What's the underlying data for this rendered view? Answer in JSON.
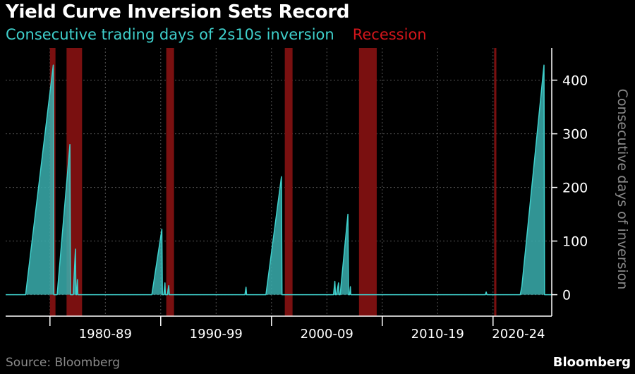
{
  "title": "Yield Curve Inversion Sets Record",
  "legend": {
    "series_label": "Consecutive trading days of 2s10s inversion",
    "recession_label": "Recession"
  },
  "source": "Source: Bloomberg",
  "brand": "Bloomberg",
  "colors": {
    "series": "#3fd0cc",
    "series_fill": "#3aaeae",
    "recession": "#7a1010",
    "grid": "#555555",
    "text": "#ffffff",
    "muted": "#8a8a8a"
  },
  "chart_data": {
    "type": "area",
    "title": "Yield Curve Inversion Sets Record",
    "ylabel": "Consecutive days of inversion",
    "xlabel": "",
    "xlim": [
      1976.0,
      2025.3
    ],
    "ylim": [
      -40,
      460
    ],
    "yticks": [
      0,
      100,
      200,
      300,
      400
    ],
    "x_period_labels": [
      {
        "label": "1980-89",
        "center": 1985.0
      },
      {
        "label": "1990-99",
        "center": 1995.0
      },
      {
        "label": "2000-09",
        "center": 2005.0
      },
      {
        "label": "2010-19",
        "center": 2015.0
      },
      {
        "label": "2020-24",
        "center": 2022.3
      }
    ],
    "period_boundaries": [
      1980,
      1990,
      2000,
      2010,
      2020
    ],
    "grid_years": [
      1975,
      1980,
      1985,
      1990,
      1995,
      2000,
      2005,
      2010,
      2015,
      2020
    ],
    "recessions": [
      [
        1980.0,
        1980.5
      ],
      [
        1981.5,
        1982.9
      ],
      [
        1990.5,
        1991.2
      ],
      [
        2001.2,
        2001.9
      ],
      [
        2007.9,
        2009.5
      ],
      [
        2020.1,
        2020.3
      ]
    ],
    "series": [
      {
        "name": "Consecutive trading days of 2s10s inversion",
        "points": [
          [
            1976.0,
            0
          ],
          [
            1977.8,
            0
          ],
          [
            1980.3,
            428
          ],
          [
            1980.35,
            0
          ],
          [
            1980.65,
            0
          ],
          [
            1981.8,
            280
          ],
          [
            1981.85,
            0
          ],
          [
            1982.1,
            0
          ],
          [
            1982.3,
            85
          ],
          [
            1982.35,
            0
          ],
          [
            1982.4,
            0
          ],
          [
            1982.48,
            28
          ],
          [
            1982.52,
            0
          ],
          [
            1985.0,
            0
          ],
          [
            1989.2,
            0
          ],
          [
            1990.1,
            122
          ],
          [
            1990.15,
            0
          ],
          [
            1990.28,
            0
          ],
          [
            1990.38,
            22
          ],
          [
            1990.42,
            0
          ],
          [
            1990.6,
            0
          ],
          [
            1990.72,
            17
          ],
          [
            1990.78,
            0
          ],
          [
            1997.6,
            0
          ],
          [
            1997.7,
            14
          ],
          [
            1997.75,
            0
          ],
          [
            1999.5,
            0
          ],
          [
            2000.9,
            220
          ],
          [
            2000.95,
            0
          ],
          [
            2005.6,
            0
          ],
          [
            2005.72,
            25
          ],
          [
            2005.78,
            0
          ],
          [
            2005.86,
            0
          ],
          [
            2006.05,
            22
          ],
          [
            2006.1,
            0
          ],
          [
            2006.2,
            0
          ],
          [
            2006.9,
            150
          ],
          [
            2006.95,
            0
          ],
          [
            2007.05,
            0
          ],
          [
            2007.12,
            15
          ],
          [
            2007.16,
            0
          ],
          [
            2019.3,
            0
          ],
          [
            2019.38,
            5
          ],
          [
            2019.45,
            0
          ],
          [
            2022.45,
            0
          ],
          [
            2022.6,
            15
          ],
          [
            2024.6,
            428
          ],
          [
            2024.65,
            0
          ],
          [
            2025.3,
            0
          ]
        ]
      }
    ]
  }
}
